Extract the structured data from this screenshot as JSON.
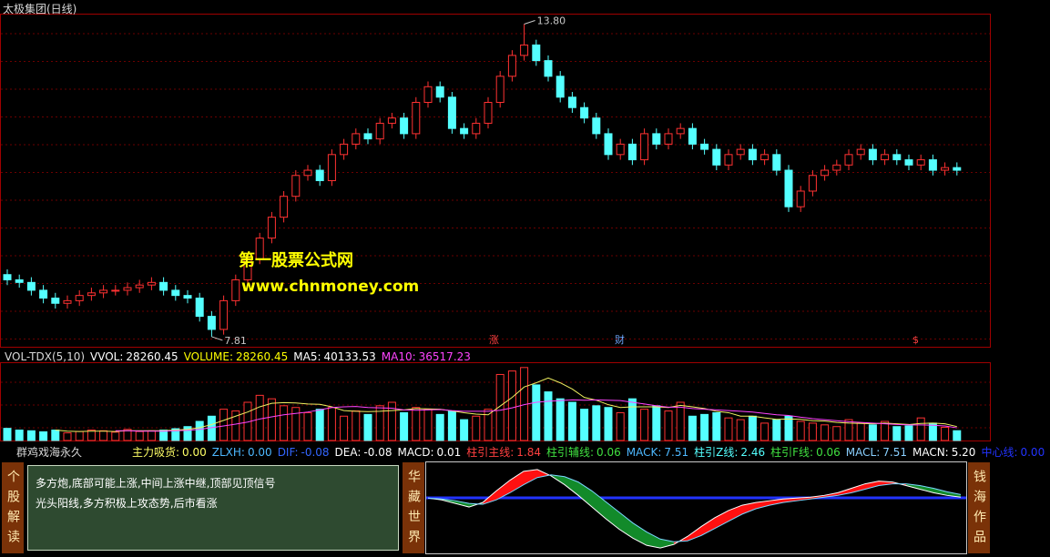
{
  "header": {
    "title": "太极集团(日线)"
  },
  "watermark": {
    "line1": "第一股票公式网",
    "line2": "www.chnmoney.com"
  },
  "markers": [
    "涨",
    "财",
    "$"
  ],
  "panel": {
    "left_tab": "个股解读",
    "notes": [
      "多方炮,底部可能上涨,中间上涨中继,顶部见顶信号",
      "光头阳线,多方积极上攻态势,后市看涨"
    ],
    "mid_tab": "华藏世界",
    "right_tab": "钱海作品"
  },
  "chart_data": [
    {
      "type": "candlestick",
      "up_color": "#ff3232",
      "down_color": "#54ffff",
      "ylim": [
        7.6,
        14.0
      ],
      "open": [
        9.0,
        8.9,
        8.85,
        8.7,
        8.55,
        8.45,
        8.5,
        8.6,
        8.65,
        8.7,
        8.7,
        8.75,
        8.8,
        8.85,
        8.7,
        8.6,
        8.55,
        8.2,
        7.95,
        8.5,
        8.9,
        9.3,
        9.7,
        10.1,
        10.5,
        10.9,
        11.0,
        10.8,
        11.3,
        11.5,
        11.7,
        11.6,
        11.9,
        12.0,
        11.7,
        12.3,
        12.6,
        12.4,
        11.8,
        11.7,
        11.9,
        12.3,
        12.8,
        13.2,
        13.4,
        13.1,
        12.8,
        12.4,
        12.2,
        12.0,
        11.7,
        11.3,
        11.5,
        11.2,
        11.7,
        11.5,
        11.7,
        11.8,
        11.5,
        11.4,
        11.1,
        11.3,
        11.4,
        11.2,
        11.3,
        11.0,
        10.3,
        10.6,
        10.9,
        11.0,
        11.1,
        11.3,
        11.4,
        11.2,
        11.3,
        11.2,
        11.1,
        11.2,
        11.0,
        11.05
      ],
      "high": [
        9.1,
        9.0,
        8.95,
        8.8,
        8.65,
        8.6,
        8.7,
        8.75,
        8.8,
        8.8,
        8.85,
        8.9,
        8.95,
        8.95,
        8.8,
        8.7,
        8.65,
        8.3,
        8.6,
        9.0,
        9.4,
        9.8,
        10.2,
        10.6,
        11.0,
        11.1,
        11.1,
        11.4,
        11.6,
        11.8,
        11.8,
        12.0,
        12.1,
        12.1,
        12.4,
        12.7,
        12.7,
        12.5,
        11.9,
        12.0,
        12.4,
        12.9,
        13.3,
        13.8,
        13.5,
        13.2,
        12.9,
        12.5,
        12.3,
        12.1,
        11.8,
        11.6,
        11.6,
        11.8,
        11.8,
        11.8,
        11.9,
        11.9,
        11.6,
        11.5,
        11.4,
        11.5,
        11.5,
        11.4,
        11.4,
        11.1,
        10.7,
        11.0,
        11.1,
        11.2,
        11.4,
        11.5,
        11.5,
        11.4,
        11.4,
        11.3,
        11.3,
        11.3,
        11.15,
        11.15
      ],
      "low": [
        8.8,
        8.75,
        8.6,
        8.45,
        8.35,
        8.35,
        8.4,
        8.5,
        8.55,
        8.6,
        8.6,
        8.65,
        8.7,
        8.6,
        8.5,
        8.45,
        8.1,
        7.81,
        7.85,
        8.4,
        8.8,
        9.2,
        9.6,
        10.0,
        10.4,
        10.8,
        10.7,
        10.7,
        11.2,
        11.4,
        11.5,
        11.5,
        11.8,
        11.6,
        11.6,
        12.2,
        12.3,
        11.7,
        11.6,
        11.6,
        11.8,
        12.2,
        12.7,
        13.1,
        13.0,
        12.7,
        12.3,
        12.1,
        11.9,
        11.6,
        11.2,
        11.2,
        11.1,
        11.1,
        11.4,
        11.4,
        11.6,
        11.4,
        11.3,
        11.0,
        11.0,
        11.2,
        11.1,
        11.1,
        10.9,
        10.2,
        10.2,
        10.5,
        10.8,
        10.9,
        11.0,
        11.2,
        11.1,
        11.1,
        11.1,
        11.0,
        11.0,
        10.9,
        10.9,
        10.9
      ],
      "close": [
        8.9,
        8.85,
        8.7,
        8.55,
        8.45,
        8.5,
        8.6,
        8.65,
        8.7,
        8.7,
        8.75,
        8.8,
        8.85,
        8.7,
        8.6,
        8.55,
        8.2,
        7.95,
        8.5,
        8.9,
        9.3,
        9.7,
        10.1,
        10.5,
        10.9,
        11.0,
        10.8,
        11.3,
        11.5,
        11.7,
        11.6,
        11.9,
        12.0,
        11.7,
        12.3,
        12.6,
        12.4,
        11.8,
        11.7,
        11.9,
        12.3,
        12.8,
        13.2,
        13.4,
        13.1,
        12.8,
        12.4,
        12.2,
        12.0,
        11.7,
        11.3,
        11.5,
        11.2,
        11.7,
        11.5,
        11.7,
        11.8,
        11.5,
        11.4,
        11.1,
        11.3,
        11.4,
        11.2,
        11.3,
        11.0,
        10.3,
        10.6,
        10.9,
        11.0,
        11.1,
        11.3,
        11.4,
        11.2,
        11.3,
        11.2,
        11.1,
        11.2,
        11.0,
        11.05,
        11.0
      ],
      "annotations": [
        {
          "value": 13.8,
          "label": "13.80"
        },
        {
          "value": 7.81,
          "label": "7.81"
        }
      ]
    },
    {
      "type": "volume",
      "title": "VOL-TDX(5,10)",
      "name": "VVOL:",
      "alt_name": "VOLUME:",
      "alt_color": "#ffff00",
      "ylim": [
        0,
        220000
      ],
      "values": [
        35000,
        30000,
        28000,
        25000,
        30000,
        22000,
        26000,
        30000,
        28000,
        24000,
        32000,
        26000,
        28000,
        30000,
        34000,
        40000,
        55000,
        70000,
        90000,
        85000,
        110000,
        130000,
        120000,
        100000,
        95000,
        80000,
        90000,
        95000,
        70000,
        85000,
        75000,
        100000,
        110000,
        80000,
        95000,
        90000,
        75000,
        85000,
        60000,
        70000,
        90000,
        190000,
        200000,
        210000,
        160000,
        140000,
        120000,
        110000,
        90000,
        100000,
        95000,
        80000,
        120000,
        90000,
        100000,
        85000,
        110000,
        70000,
        75000,
        80000,
        65000,
        60000,
        70000,
        50000,
        60000,
        70000,
        55000,
        50000,
        45000,
        40000,
        60000,
        50000,
        45000,
        55000,
        40000,
        42000,
        65000,
        50000,
        38000,
        28260.45
      ],
      "series": [
        {
          "name": "MA5:",
          "color": "#f0f060",
          "values": [
            null,
            null,
            null,
            null,
            30000,
            27000,
            26000,
            27000,
            27000,
            26000,
            28000,
            28000,
            28000,
            28000,
            30000,
            32000,
            37000,
            46000,
            58000,
            70000,
            82000,
            97000,
            107000,
            109000,
            108000,
            105000,
            104000,
            97000,
            86000,
            84000,
            83000,
            84000,
            86000,
            88000,
            92000,
            91000,
            90000,
            85000,
            80000,
            76000,
            74000,
            99000,
            124000,
            154000,
            166000,
            180000,
            166000,
            148000,
            124000,
            116000,
            103000,
            95000,
            97000,
            97000,
            97000,
            95000,
            101000,
            97000,
            92000,
            84000,
            80000,
            70000,
            70000,
            65000,
            61000,
            62000,
            61000,
            57000,
            56000,
            52000,
            50000,
            49000,
            48000,
            50000,
            48000,
            46000,
            49000,
            50000,
            48000,
            40133.53
          ]
        },
        {
          "name": "MA10:",
          "color": "#ff44ff",
          "values": [
            null,
            null,
            null,
            null,
            null,
            null,
            null,
            null,
            null,
            28000,
            28000,
            27000,
            27000,
            27000,
            28000,
            29000,
            32000,
            37000,
            42000,
            47000,
            53000,
            62000,
            68000,
            74000,
            78000,
            82000,
            88000,
            95000,
            97000,
            98000,
            95000,
            94000,
            93000,
            88000,
            87000,
            88000,
            89000,
            86000,
            84000,
            84000,
            84000,
            87000,
            94000,
            103000,
            110000,
            113000,
            115000,
            117000,
            116000,
            117000,
            116000,
            115000,
            110000,
            105000,
            100000,
            96000,
            96000,
            92000,
            90000,
            88000,
            86000,
            84000,
            82000,
            78000,
            74000,
            72000,
            67000,
            63000,
            60000,
            57000,
            54000,
            52000,
            50000,
            48000,
            46000,
            45000,
            45000,
            44000,
            42000,
            36517.23
          ]
        }
      ]
    },
    {
      "type": "line",
      "title": "群鸡戏海永久",
      "ylim": [
        -6,
        3.6
      ],
      "up_fill": "#ff1010",
      "down_fill": "#128a2a",
      "indicators": [
        {
          "name": "主力吸货:",
          "label": "0.00",
          "color": "#ffff66"
        },
        {
          "name": "ZLXH:",
          "label": "0.00",
          "color": "#4db8ff"
        },
        {
          "name": "DIF:",
          "label": "-0.08",
          "color": "#3366ff"
        },
        {
          "name": "DEA:",
          "label": "-0.08",
          "color": "#ffffff"
        },
        {
          "name": "MACD:",
          "label": "0.01",
          "color": "#ffffff"
        },
        {
          "name": "柱引主线:",
          "label": "1.84",
          "color": "#ff4040"
        },
        {
          "name": "柱引辅线:",
          "label": "0.06",
          "color": "#40e040"
        },
        {
          "name": "MACK:",
          "label": "7.51",
          "color": "#4db8ff"
        },
        {
          "name": "柱引Z线:",
          "label": "2.46",
          "color": "#54ffff"
        },
        {
          "name": "柱引F线:",
          "label": "0.06",
          "color": "#40e040"
        },
        {
          "name": "MACL:",
          "label": "7.51",
          "color": "#8ad0ff"
        },
        {
          "name": "MACN:",
          "label": "5.20",
          "color": "#ffffff"
        },
        {
          "name": "中心线:",
          "label": "0.00",
          "color": "#2233ff"
        }
      ],
      "series": [
        {
          "color": "#ffffff",
          "values": [
            0,
            -0.2,
            -0.6,
            -1.0,
            -0.5,
            0.8,
            2.0,
            3.0,
            3.2,
            2.5,
            1.5,
            0.3,
            -1.0,
            -2.3,
            -3.5,
            -4.5,
            -5.3,
            -5.6,
            -5.2,
            -4.3,
            -3.2,
            -2.2,
            -1.4,
            -0.8,
            -0.5,
            -0.3,
            -0.1,
            0,
            0.1,
            0.3,
            0.6,
            1.1,
            1.6,
            1.9,
            1.8,
            1.4,
            1.0,
            0.6,
            0.3,
            0.1
          ]
        },
        {
          "color": "#7ad7ff",
          "values": [
            0,
            -0.1,
            -0.3,
            -0.6,
            -0.7,
            -0.2,
            0.6,
            1.5,
            2.3,
            2.6,
            2.4,
            1.8,
            0.8,
            -0.4,
            -1.6,
            -2.8,
            -3.8,
            -4.6,
            -4.9,
            -4.8,
            -4.2,
            -3.4,
            -2.6,
            -1.8,
            -1.2,
            -0.8,
            -0.5,
            -0.3,
            -0.1,
            0.1,
            0.3,
            0.6,
            1.0,
            1.4,
            1.6,
            1.6,
            1.4,
            1.1,
            0.7,
            0.4
          ]
        }
      ]
    }
  ]
}
